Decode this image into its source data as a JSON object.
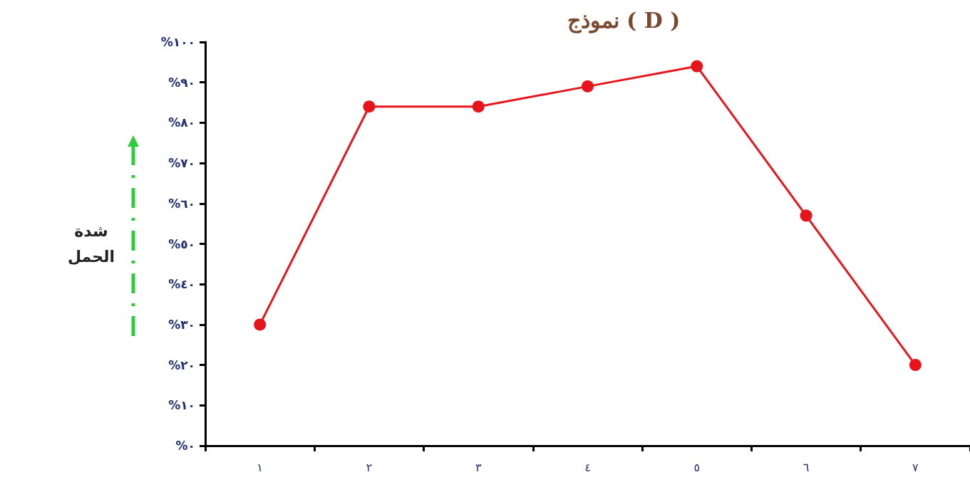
{
  "chart_data": {
    "type": "line",
    "title": "نموذج ( D )",
    "ylabel": "شدة الحمل",
    "categories": [
      "١",
      "٢",
      "٣",
      "٤",
      "٥",
      "٦",
      "٧"
    ],
    "series": [
      {
        "color": "#e8141c",
        "values": [
          30,
          84,
          84,
          89,
          94,
          57,
          20
        ]
      }
    ],
    "ylim": [
      0,
      100
    ],
    "yticks": [
      {
        "value": 0,
        "label": "%٠"
      },
      {
        "value": 10,
        "label": "%١٠"
      },
      {
        "value": 20,
        "label": "%٢٠"
      },
      {
        "value": 30,
        "label": "%٣٠"
      },
      {
        "value": 40,
        "label": "%٤٠"
      },
      {
        "value": 50,
        "label": "%٥٠"
      },
      {
        "value": 60,
        "label": "%٦٠"
      },
      {
        "value": 70,
        "label": "%٧٠"
      },
      {
        "value": 80,
        "label": "%٨٠"
      },
      {
        "value": 90,
        "label": "%٩٠"
      },
      {
        "value": 100,
        "label": "%١٠٠"
      }
    ],
    "grid": false,
    "marker": "circle",
    "line_style": "solid"
  }
}
